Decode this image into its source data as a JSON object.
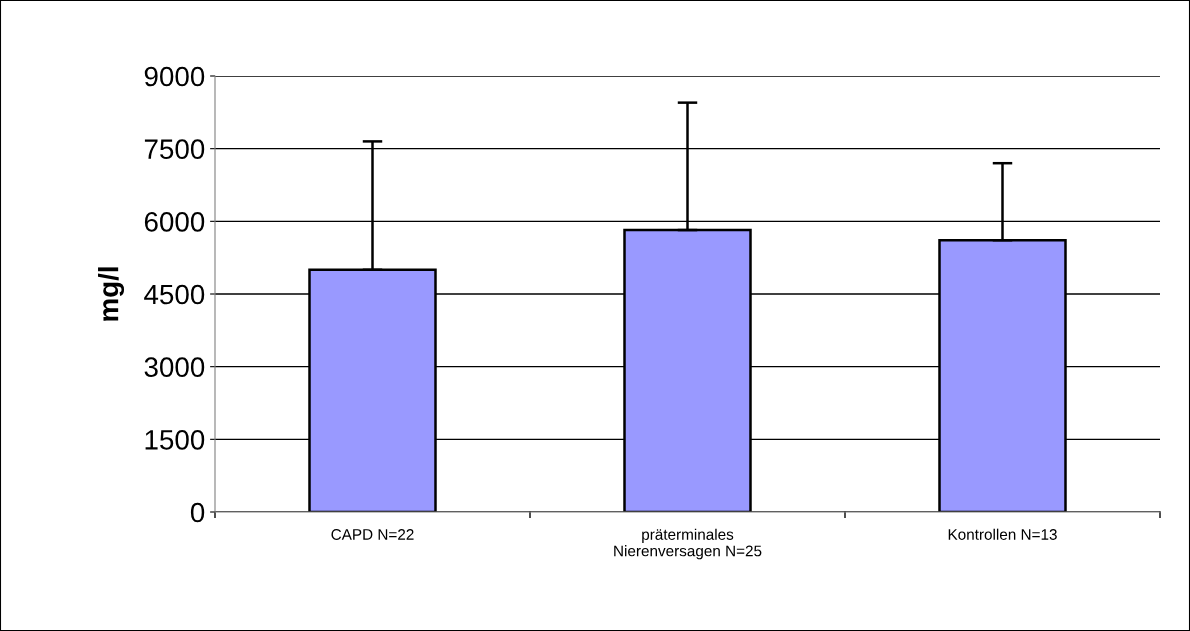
{
  "chart_data": {
    "type": "bar",
    "ylabel": "mg/l",
    "categories": [
      "CAPD N=22",
      "präterminales\nNierenversagen N=25",
      "Kontrollen N=13"
    ],
    "values": [
      5000,
      5820,
      5610
    ],
    "errors": [
      [
        5000,
        7650
      ],
      [
        5820,
        8450
      ],
      [
        5610,
        7200
      ]
    ],
    "color": "#9999ff",
    "ylim": [
      0,
      9000
    ],
    "yticks": [
      0,
      1500,
      3000,
      4500,
      6000,
      7500,
      9000
    ],
    "grid": "y",
    "legend": false
  }
}
